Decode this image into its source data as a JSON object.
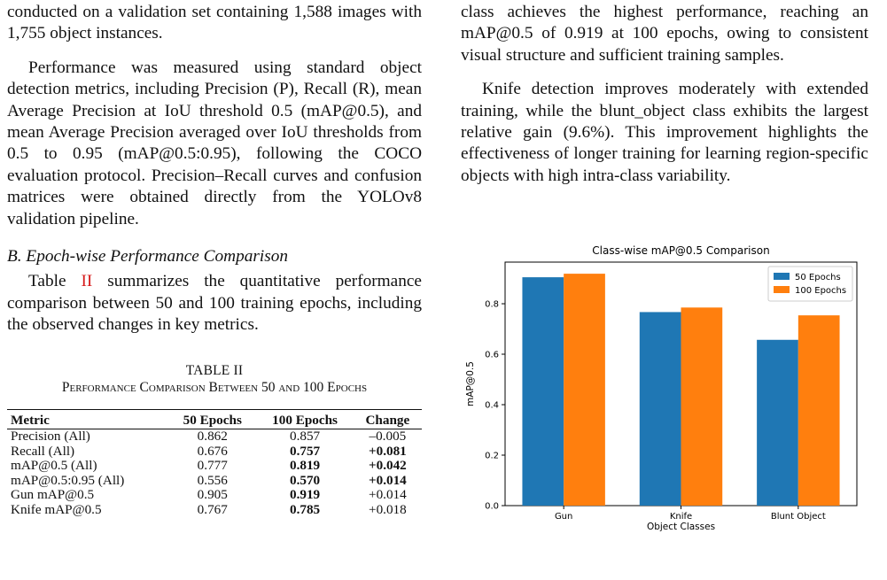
{
  "left_column": {
    "para1": "conducted on a validation set containing 1,588 images with 1,755 object instances.",
    "para2": "Performance was measured using standard object detection metrics, including Precision (P), Recall (R), mean Average Precision at IoU threshold 0.5 (mAP@0.5), and mean Average Precision averaged over IoU thresholds from 0.5 to 0.95 (mAP@0.5:0.95), following the COCO evaluation protocol. Precision–Recall curves and confusion matrices were obtained directly from the YOLOv8 validation pipeline.",
    "section_heading": "B. Epoch-wise Performance Comparison",
    "para3_before": "Table ",
    "para3_ref": "II",
    "para3_after": " summarizes the quantitative performance comparison between 50 and 100 training epochs, including the observed changes in key metrics.",
    "table_title": "TABLE II",
    "table_caption": "Performance Comparison Between 50 and 100 Epochs"
  },
  "table": {
    "headers": [
      "Metric",
      "50 Epochs",
      "100 Epochs",
      "Change"
    ],
    "rows": [
      {
        "metric": "Precision (All)",
        "e50": "0.862",
        "e100": "0.857",
        "change": "–0.005",
        "bold100": false,
        "boldChange": false
      },
      {
        "metric": "Recall (All)",
        "e50": "0.676",
        "e100": "0.757",
        "change": "+0.081",
        "bold100": true,
        "boldChange": true
      },
      {
        "metric": "mAP@0.5 (All)",
        "e50": "0.777",
        "e100": "0.819",
        "change": "+0.042",
        "bold100": true,
        "boldChange": true
      },
      {
        "metric": "mAP@0.5:0.95 (All)",
        "e50": "0.556",
        "e100": "0.570",
        "change": "+0.014",
        "bold100": true,
        "boldChange": true
      },
      {
        "metric": "Gun mAP@0.5",
        "e50": "0.905",
        "e100": "0.919",
        "change": "+0.014",
        "bold100": true,
        "boldChange": false
      },
      {
        "metric": "Knife mAP@0.5",
        "e50": "0.767",
        "e100": "0.785",
        "change": "+0.018",
        "bold100": true,
        "boldChange": false
      }
    ]
  },
  "right_column": {
    "para1": "class achieves the highest performance, reaching an mAP@0.5 of 0.919 at 100 epochs, owing to consistent visual structure and sufficient training samples.",
    "para2": "Knife detection improves moderately with extended training, while the blunt_object class exhibits the largest relative gain (9.6%). This improvement highlights the effectiveness of longer training for learning region-specific objects with high intra-class variability."
  },
  "chart_data": {
    "type": "bar",
    "title": "Class-wise mAP@0.5 Comparison",
    "xlabel": "Object Classes",
    "ylabel": "mAP@0.5",
    "categories": [
      "Gun",
      "Knife",
      "Blunt Object"
    ],
    "series": [
      {
        "name": "50 Epochs",
        "values": [
          0.905,
          0.767,
          0.657
        ],
        "color": "#1f77b4"
      },
      {
        "name": "100 Epochs",
        "values": [
          0.919,
          0.785,
          0.754
        ],
        "color": "#ff7f0e"
      }
    ],
    "ylim": [
      0,
      0.965
    ],
    "yticks": [
      "0.0",
      "0.2",
      "0.4",
      "0.6",
      "0.8"
    ],
    "ytick_values": [
      0,
      0.2,
      0.4,
      0.6,
      0.8
    ],
    "grid": false,
    "legend_position": "top-right"
  }
}
